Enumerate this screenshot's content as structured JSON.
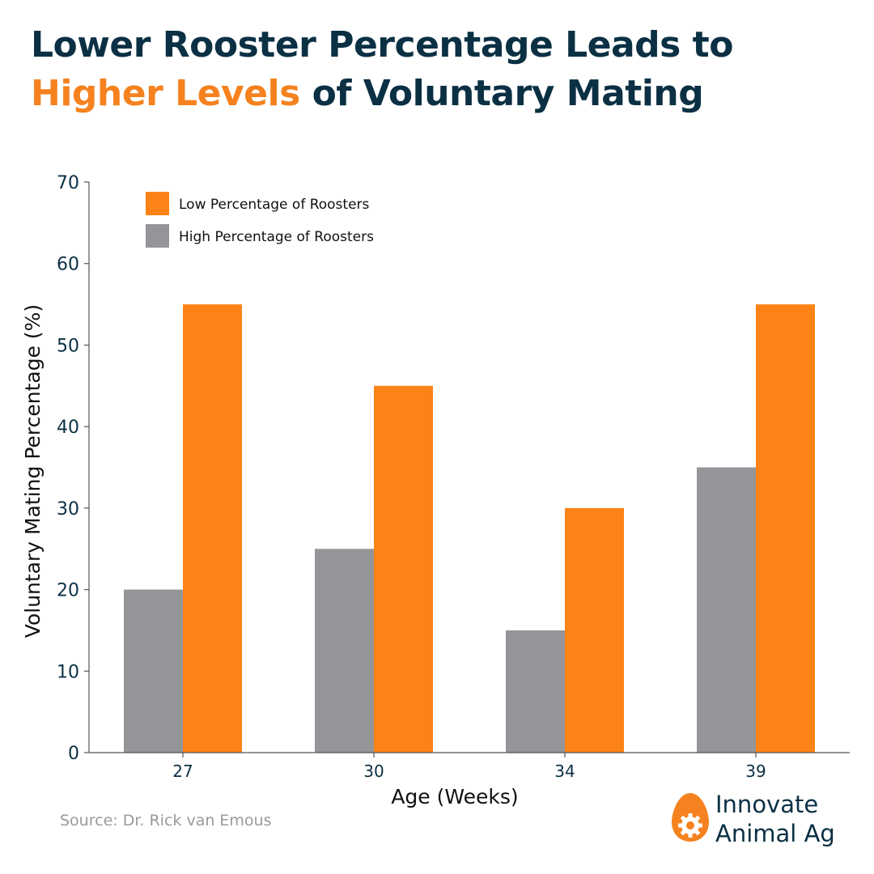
{
  "title": {
    "part1": "Lower Rooster Percentage Leads to ",
    "highlight": "Higher Levels",
    "part2": " of Voluntary Mating",
    "highlight_color": "#f5821f",
    "color": "#0b3044"
  },
  "chart_data": {
    "type": "bar",
    "categories": [
      "27",
      "30",
      "34",
      "39"
    ],
    "series": [
      {
        "name": "High Percentage of Roosters",
        "values": [
          20,
          25,
          15,
          35
        ],
        "color": "#939598"
      },
      {
        "name": "Low Percentage of Roosters",
        "values": [
          55,
          45,
          30,
          55
        ],
        "color": "#fd8316"
      }
    ],
    "legend_order": [
      "Low Percentage of Roosters",
      "High Percentage of Roosters"
    ],
    "legend_position": "top-left",
    "xlabel": "Age (Weeks)",
    "ylabel": "Voluntary Mating Percentage (%)",
    "ylim": [
      0,
      70
    ],
    "yticks": [
      0,
      10,
      20,
      30,
      40,
      50,
      60,
      70
    ],
    "grid": false
  },
  "source": "Source: Dr. Rick van Emous",
  "logo": {
    "line1": "Innovate",
    "line2": "Animal Ag",
    "icon": "egg-gear-icon",
    "accent": "#f5821f"
  }
}
